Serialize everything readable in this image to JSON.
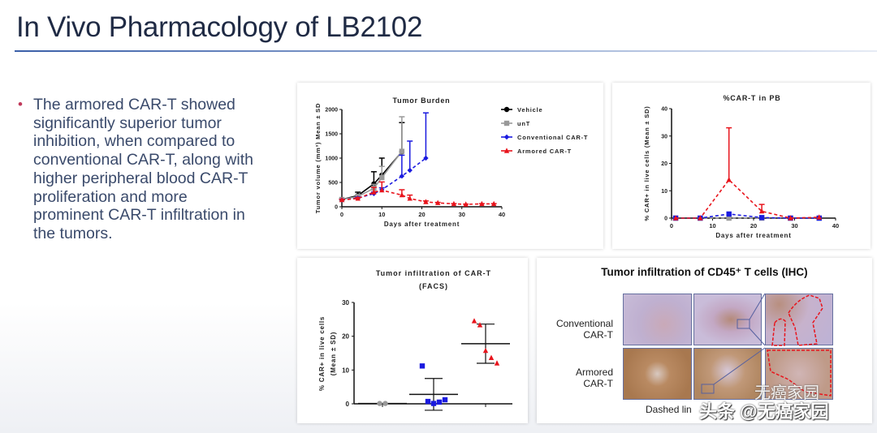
{
  "slide": {
    "title": "In Vivo Pharmacology of LB2102",
    "bullet": "The armored CAR-T showed significantly superior tumor inhibition, when compared to conventional CAR-T, along with higher peripheral blood CAR-T proliferation and more prominent CAR-T infiltration in the tumors."
  },
  "colors": {
    "vehicle": "#000000",
    "unT": "#999999",
    "conventional": "#1a1adf",
    "armored": "#e8141c"
  },
  "chart_data": [
    {
      "type": "line",
      "title": "Tumor Burden",
      "xlabel": "Days after treatment",
      "ylabel": "Tumor volume (mm³) Mean ± SD",
      "xlim": [
        0,
        40
      ],
      "ylim": [
        0,
        2000
      ],
      "xticks": [
        "0",
        "10",
        "20",
        "30",
        "40"
      ],
      "yticks": [
        "0",
        "500",
        "1000",
        "1500",
        "2000"
      ],
      "legend": "right",
      "series": [
        {
          "name": "Vehicle",
          "color": "#000000",
          "dashed": false,
          "marker": "circle",
          "x": [
            0,
            4,
            8,
            10,
            15
          ],
          "y": [
            150,
            230,
            470,
            650,
            1130
          ],
          "sd": [
            20,
            70,
            250,
            350,
            600
          ]
        },
        {
          "name": "unT",
          "color": "#999999",
          "dashed": false,
          "marker": "square",
          "x": [
            0,
            4,
            8,
            10,
            15
          ],
          "y": [
            150,
            210,
            380,
            600,
            1140
          ],
          "sd": [
            20,
            40,
            80,
            230,
            710
          ]
        },
        {
          "name": "Conventional CAR-T",
          "color": "#1a1adf",
          "dashed": true,
          "marker": "diamond",
          "x": [
            0,
            4,
            8,
            10,
            15,
            17,
            21
          ],
          "y": [
            140,
            180,
            270,
            350,
            630,
            750,
            1000
          ],
          "sd": [
            10,
            20,
            30,
            40,
            430,
            600,
            930
          ]
        },
        {
          "name": "Armored CAR-T",
          "color": "#e8141c",
          "dashed": true,
          "marker": "triangle",
          "x": [
            0,
            4,
            8,
            10,
            15,
            17,
            21,
            24,
            28,
            31,
            35,
            38
          ],
          "y": [
            140,
            170,
            300,
            340,
            240,
            170,
            100,
            80,
            60,
            50,
            60,
            60
          ],
          "sd": [
            10,
            20,
            100,
            170,
            110,
            70,
            20,
            10,
            5,
            5,
            5,
            5
          ]
        }
      ]
    },
    {
      "type": "line",
      "title": "%CAR-T in PB",
      "xlabel": "Days after treatment",
      "ylabel": "% CAR+ in live cells (Mean ± SD)",
      "xlim": [
        0,
        40
      ],
      "ylim": [
        0,
        40
      ],
      "xticks": [
        "0",
        "10",
        "20",
        "30",
        "40"
      ],
      "yticks": [
        "0",
        "10",
        "20",
        "30",
        "40"
      ],
      "series": [
        {
          "name": "unT",
          "color": "#999999",
          "dashed": true,
          "marker": "square",
          "x": [
            1,
            7,
            14,
            22,
            29,
            36
          ],
          "y": [
            0,
            0,
            0,
            0,
            0,
            0
          ],
          "sd": [
            0,
            0,
            0,
            0,
            0,
            0
          ]
        },
        {
          "name": "Conventional CAR-T",
          "color": "#1a1adf",
          "dashed": true,
          "marker": "square",
          "x": [
            1,
            7,
            14,
            22,
            29,
            36
          ],
          "y": [
            0,
            0,
            1.5,
            0.2,
            0,
            0
          ],
          "sd": [
            0,
            0,
            0,
            0,
            0,
            0
          ]
        },
        {
          "name": "Armored CAR-T",
          "color": "#e8141c",
          "dashed": true,
          "marker": "triangle",
          "x": [
            1,
            7,
            14,
            22,
            29,
            36
          ],
          "y": [
            0,
            0,
            14,
            2.5,
            0,
            0.3
          ],
          "sd": [
            0,
            0,
            19,
            2.5,
            0,
            0
          ]
        }
      ]
    },
    {
      "type": "scatter",
      "title": "Tumor infiltration of CAR-T",
      "subtitle": "(FACS)",
      "ylabel": "% CAR+ in live cells",
      "ylabel2": "(Mean ± SD)",
      "ylim": [
        0,
        30
      ],
      "yticks": [
        "0",
        "10",
        "20",
        "30"
      ],
      "groups": [
        {
          "name": "unT",
          "color": "#999999",
          "marker": "circle",
          "values": [
            0.1,
            0.1
          ],
          "mean": 0.1,
          "sd": 0
        },
        {
          "name": "Conventional CAR-T",
          "color": "#1a1adf",
          "marker": "square",
          "values": [
            11.2,
            0.7,
            0.1,
            0.5,
            1.2
          ],
          "mean": 2.8,
          "sd": 4.7
        },
        {
          "name": "Armored CAR-T",
          "color": "#e8141c",
          "marker": "triangle",
          "values": [
            24.5,
            23.3,
            15.7,
            13.6,
            12.0
          ],
          "mean": 17.8,
          "sd": 5.8
        }
      ]
    }
  ],
  "ihc": {
    "title": "Tumor infiltration of CD45⁺ T cells (IHC)",
    "row1": "Conventional",
    "row1b": "CAR-T",
    "row2": "Armored",
    "row2b": "CAR-T",
    "caption": "Dashed lin",
    "watermark": "头条 @无癌家园",
    "watermark2": "无癌家园"
  }
}
